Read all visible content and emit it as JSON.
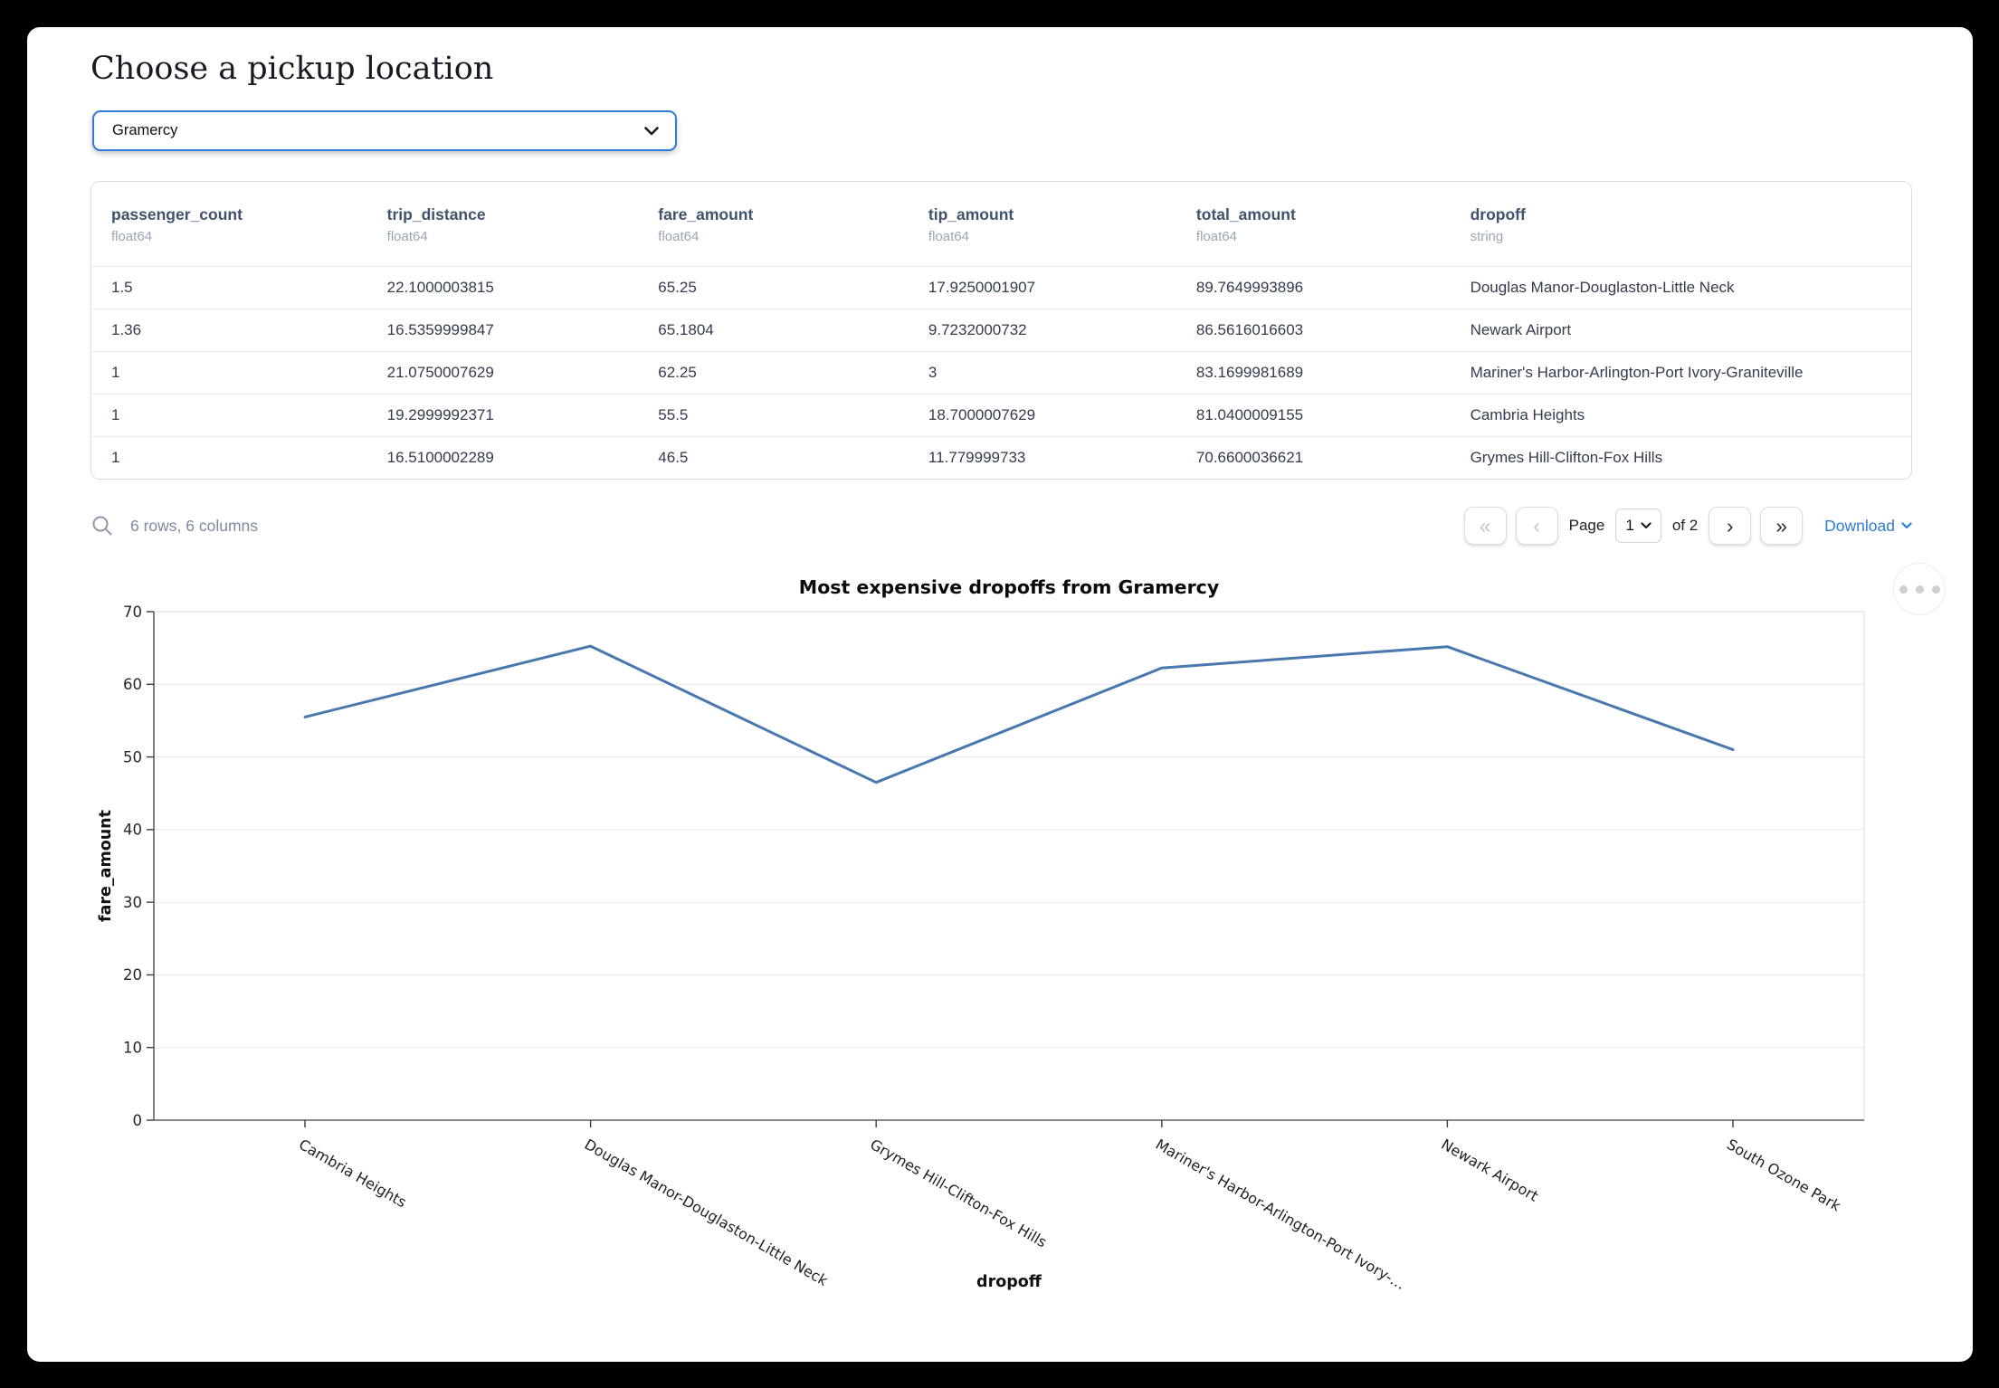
{
  "header": {
    "title": "Choose a pickup location"
  },
  "picker": {
    "value": "Gramercy"
  },
  "table": {
    "columns": [
      {
        "name": "passenger_count",
        "type": "float64"
      },
      {
        "name": "trip_distance",
        "type": "float64"
      },
      {
        "name": "fare_amount",
        "type": "float64"
      },
      {
        "name": "tip_amount",
        "type": "float64"
      },
      {
        "name": "total_amount",
        "type": "float64"
      },
      {
        "name": "dropoff",
        "type": "string"
      }
    ],
    "rows": [
      [
        "1.5",
        "22.1000003815",
        "65.25",
        "17.9250001907",
        "89.7649993896",
        "Douglas Manor-Douglaston-Little Neck"
      ],
      [
        "1.36",
        "16.5359999847",
        "65.1804",
        "9.7232000732",
        "86.5616016603",
        "Newark Airport"
      ],
      [
        "1",
        "21.0750007629",
        "62.25",
        "3",
        "83.1699981689",
        "Mariner's Harbor-Arlington-Port Ivory-Graniteville"
      ],
      [
        "1",
        "19.2999992371",
        "55.5",
        "18.7000007629",
        "81.0400009155",
        "Cambria Heights"
      ],
      [
        "1",
        "16.5100002289",
        "46.5",
        "11.779999733",
        "70.6600036621",
        "Grymes Hill-Clifton-Fox Hills"
      ]
    ]
  },
  "table_footer": {
    "summary": "6 rows, 6 columns",
    "pagination": {
      "first_label": "«",
      "prev_label": "‹",
      "page_label": "Page",
      "page_value": "1",
      "of_label": "of 2",
      "next_label": "›",
      "last_label": "»"
    },
    "download_label": "Download"
  },
  "chart_data": {
    "type": "line",
    "title": "Most expensive dropoffs from Gramercy",
    "xlabel": "dropoff",
    "ylabel": "fare_amount",
    "categories": [
      "Cambria Heights",
      "Douglas Manor-Douglaston-Little Neck",
      "Grymes Hill-Clifton-Fox Hills",
      "Mariner's Harbor-Arlington-Port Ivory-…",
      "Newark Airport",
      "South Ozone Park"
    ],
    "values": [
      55.5,
      65.25,
      46.5,
      62.25,
      65.1804,
      51
    ],
    "ylim": [
      0,
      70
    ],
    "yticks": [
      0,
      10,
      20,
      30,
      40,
      50,
      60,
      70
    ],
    "grid": true,
    "legend": "none",
    "line_color": "#4878ae",
    "x_tick_rotation_deg": 30
  },
  "colors": {
    "accent_blue": "#2e7cd6",
    "header_text": "#41526f",
    "muted_text": "#7d89a0"
  }
}
